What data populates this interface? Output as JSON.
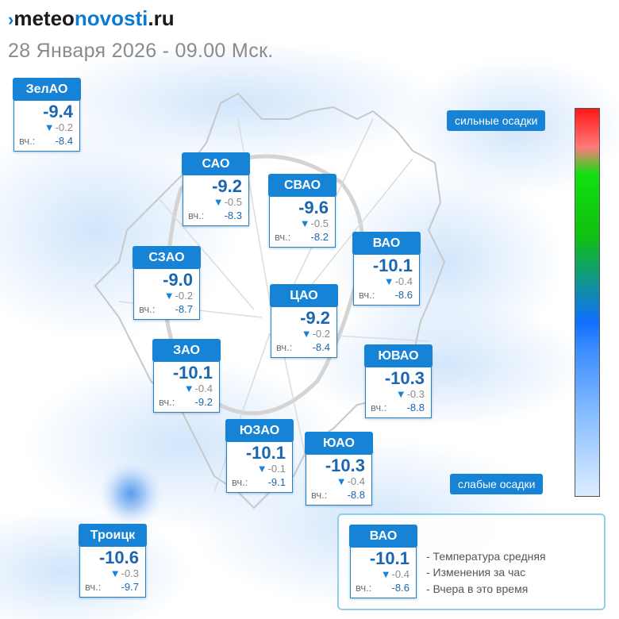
{
  "header": {
    "logo": {
      "mark": "›",
      "part1": "meteo",
      "part2": "novosti",
      "part3": ".ru"
    },
    "date": "28 Января 2026 - 09.00 Мск."
  },
  "districts": [
    {
      "name": "ЗелАО",
      "temp": "-9.4",
      "delta": "-0.2",
      "yesterday_label": "вч.:",
      "yesterday": "-8.4"
    },
    {
      "name": "САО",
      "temp": "-9.2",
      "delta": "-0.5",
      "yesterday_label": "вч.:",
      "yesterday": "-8.3"
    },
    {
      "name": "СВАО",
      "temp": "-9.6",
      "delta": "-0.5",
      "yesterday_label": "вч.:",
      "yesterday": "-8.2"
    },
    {
      "name": "ВАО",
      "temp": "-10.1",
      "delta": "-0.4",
      "yesterday_label": "вч.:",
      "yesterday": "-8.6"
    },
    {
      "name": "СЗАО",
      "temp": "-9.0",
      "delta": "-0.2",
      "yesterday_label": "вч.:",
      "yesterday": "-8.7"
    },
    {
      "name": "ЦАО",
      "temp": "-9.2",
      "delta": "-0.2",
      "yesterday_label": "вч.:",
      "yesterday": "-8.4"
    },
    {
      "name": "ЗАО",
      "temp": "-10.1",
      "delta": "-0.4",
      "yesterday_label": "вч.:",
      "yesterday": "-9.2"
    },
    {
      "name": "ЮВАО",
      "temp": "-10.3",
      "delta": "-0.3",
      "yesterday_label": "вч.:",
      "yesterday": "-8.8"
    },
    {
      "name": "ЮЗАО",
      "temp": "-10.1",
      "delta": "-0.1",
      "yesterday_label": "вч.:",
      "yesterday": "-9.1"
    },
    {
      "name": "ЮАО",
      "temp": "-10.3",
      "delta": "-0.4",
      "yesterday_label": "вч.:",
      "yesterday": "-8.8"
    },
    {
      "name": "Троицк",
      "temp": "-10.6",
      "delta": "-0.3",
      "yesterday_label": "вч.:",
      "yesterday": "-9.7"
    }
  ],
  "precip_scale": {
    "top_label": "сильные осадки",
    "bottom_label": "слабые осадки",
    "colors": [
      "#ff1818",
      "#10e010",
      "#1070ff",
      "#dcecff"
    ]
  },
  "legend": {
    "sample": {
      "name": "ВАО",
      "temp": "-10.1",
      "delta": "-0.4",
      "yesterday_label": "вч.:",
      "yesterday": "-8.6"
    },
    "desc_temp": "- Температура средняя",
    "desc_change": "- Изменения за час",
    "desc_yesterday": "- Вчера в это время"
  },
  "icons": {
    "delta": "triangle-down-icon"
  }
}
